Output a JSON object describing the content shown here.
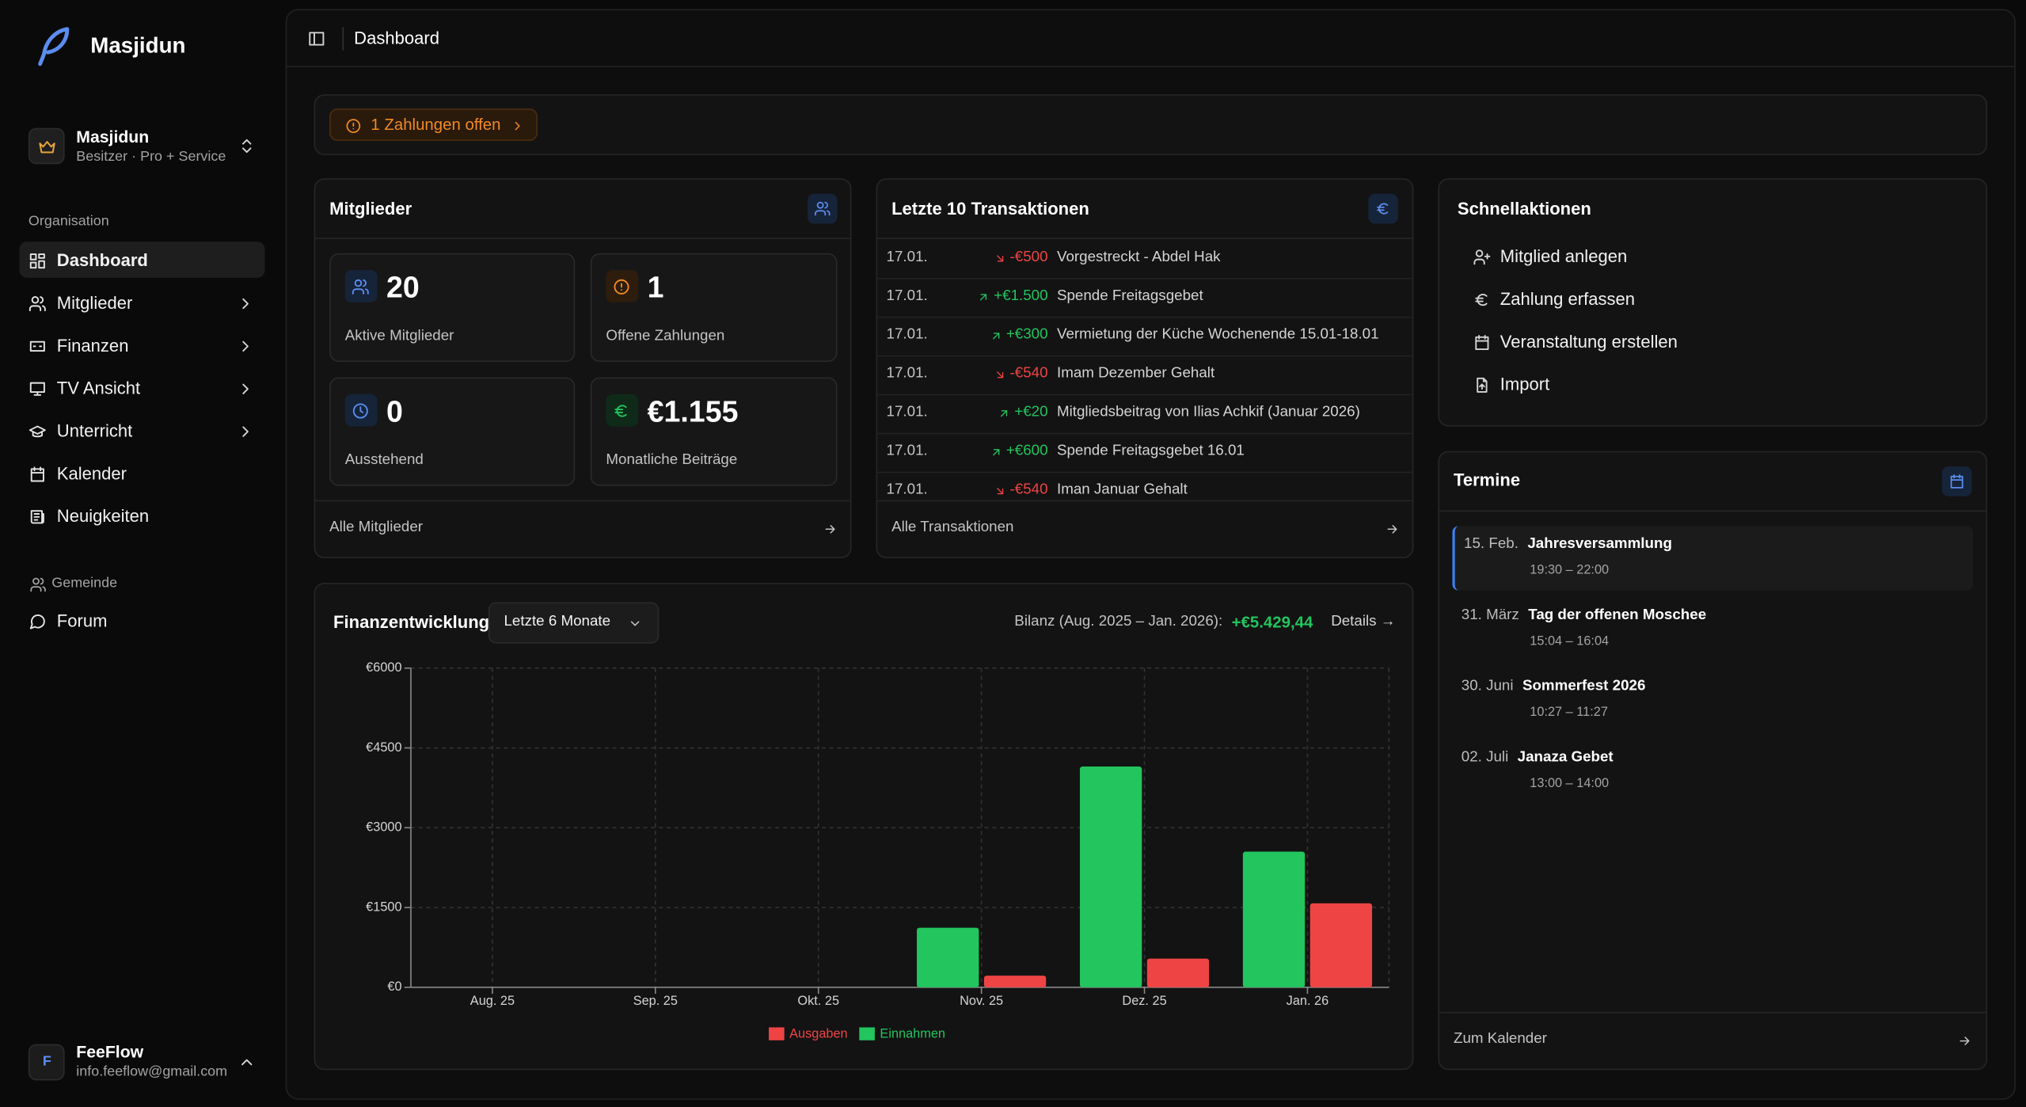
{
  "sidebar": {
    "brand": "Masjidun",
    "org": {
      "name": "Masjidun",
      "role": "Besitzer · Pro + Service"
    },
    "section1": "Organisation",
    "nav": [
      "Dashboard",
      "Mitglieder",
      "Finanzen",
      "TV Ansicht",
      "Unterricht",
      "Kalender",
      "Neuigkeiten"
    ],
    "section2": "Gemeinde",
    "nav2": [
      "Forum"
    ],
    "user": {
      "initial": "F",
      "name": "FeeFlow",
      "email": "info.feeflow@gmail.com"
    }
  },
  "header": {
    "title": "Dashboard"
  },
  "alert": "1 Zahlungen offen",
  "members": {
    "title": "Mitglieder",
    "stats": [
      {
        "value": 20,
        "label": "Aktive Mitglieder"
      },
      {
        "value": 1,
        "label": "Offene Zahlungen"
      },
      {
        "value": 0,
        "label": "Ausstehend"
      },
      {
        "value": "€1.155",
        "label": "Monatliche Beiträge"
      }
    ],
    "link": "Alle Mitglieder"
  },
  "transactions": {
    "title": "Letzte 10 Transaktionen",
    "rows": [
      [
        "17.01.",
        "-€500",
        "Vorgestreckt - Abdel Hak"
      ],
      [
        "17.01.",
        "+€1.500",
        "Spende Freitagsgebet"
      ],
      [
        "17.01.",
        "+€300",
        "Vermietung der Küche Wochenende 15.01-18.01"
      ],
      [
        "17.01.",
        "-€540",
        "Imam Dezember Gehalt"
      ],
      [
        "17.01.",
        "+€20",
        "Mitgliedsbeitrag von Ilias Achkif (Januar 2026)"
      ],
      [
        "17.01.",
        "+€600",
        "Spende Freitagsgebet 16.01"
      ],
      [
        "17.01.",
        "-€540",
        "Iman Januar Gehalt"
      ]
    ],
    "link": "Alle Transaktionen"
  },
  "quick_actions": {
    "title": "Schnellaktionen",
    "items": [
      "Mitglied anlegen",
      "Zahlung erfassen",
      "Veranstaltung erstellen",
      "Import"
    ]
  },
  "events": {
    "title": "Termine",
    "items": [
      {
        "date": "15. Feb.",
        "title": "Jahresversammlung",
        "time": "19:30 – 22:00"
      },
      {
        "date": "31. März",
        "title": "Tag der offenen Moschee",
        "time": "15:04 – 16:04"
      },
      {
        "date": "30. Juni",
        "title": "Sommerfest 2026",
        "time": "10:27 – 11:27"
      },
      {
        "date": "02. Juli",
        "title": "Janaza Gebet",
        "time": "13:00 – 14:00"
      }
    ],
    "link": "Zum Kalender"
  },
  "finance": {
    "title": "Finanzentwicklung",
    "period": "Letzte 6 Monate",
    "balance_label": "Bilanz (Aug. 2025 – Jan. 2026):",
    "balance": "+€5.429,44",
    "details": "Details →",
    "chart": {
      "type": "bar",
      "categories": [
        "Aug. 25",
        "Sep. 25",
        "Okt. 25",
        "Nov. 25",
        "Dez. 25",
        "Jan. 26"
      ],
      "series": [
        {
          "name": "Einnahmen",
          "color": "#22c55e",
          "values": [
            0,
            0,
            0,
            1120,
            4150,
            2550
          ]
        },
        {
          "name": "Ausgaben",
          "color": "#ef4444",
          "values": [
            0,
            0,
            0,
            220,
            540,
            1580
          ]
        }
      ],
      "ylim": [
        0,
        6000
      ],
      "yticks": [
        {
          "value": 0,
          "label": "€0"
        },
        {
          "value": 1500,
          "label": "€1500"
        },
        {
          "value": 3000,
          "label": "€3000"
        },
        {
          "value": 4500,
          "label": "€4500"
        },
        {
          "value": 6000,
          "label": "€6000"
        }
      ],
      "grid": true
    }
  }
}
